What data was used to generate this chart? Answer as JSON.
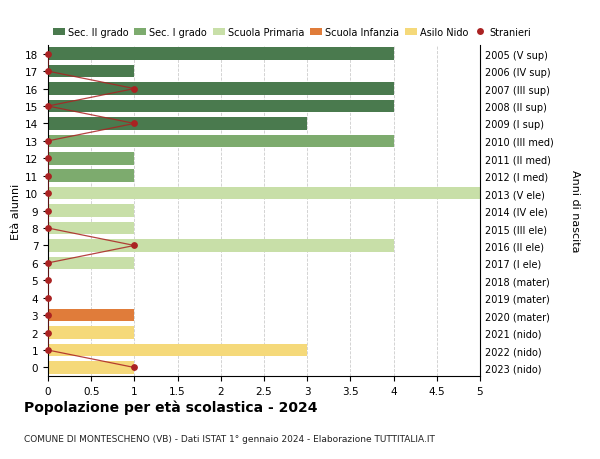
{
  "ages": [
    18,
    17,
    16,
    15,
    14,
    13,
    12,
    11,
    10,
    9,
    8,
    7,
    6,
    5,
    4,
    3,
    2,
    1,
    0
  ],
  "years": [
    "2005 (V sup)",
    "2006 (IV sup)",
    "2007 (III sup)",
    "2008 (II sup)",
    "2009 (I sup)",
    "2010 (III med)",
    "2011 (II med)",
    "2012 (I med)",
    "2013 (V ele)",
    "2014 (IV ele)",
    "2015 (III ele)",
    "2016 (II ele)",
    "2017 (I ele)",
    "2018 (mater)",
    "2019 (mater)",
    "2020 (mater)",
    "2021 (nido)",
    "2022 (nido)",
    "2023 (nido)"
  ],
  "bar_values": [
    4,
    1,
    4,
    4,
    3,
    4,
    1,
    1,
    5,
    1,
    1,
    4,
    1,
    0,
    0,
    1,
    1,
    3,
    1
  ],
  "bar_colors": [
    "#4a7a4e",
    "#4a7a4e",
    "#4a7a4e",
    "#4a7a4e",
    "#4a7a4e",
    "#7dab6e",
    "#7dab6e",
    "#7dab6e",
    "#c8dfa8",
    "#c8dfa8",
    "#c8dfa8",
    "#c8dfa8",
    "#c8dfa8",
    "#e07c3a",
    "#e07c3a",
    "#e07c3a",
    "#f5d97a",
    "#f5d97a",
    "#f5d97a"
  ],
  "stranieri_values": [
    0,
    0,
    1,
    0,
    1,
    0,
    0,
    0,
    0,
    0,
    0,
    1,
    0,
    0,
    0,
    0,
    0,
    0,
    1
  ],
  "title": "Popolazione per età scolastica - 2024",
  "subtitle": "COMUNE DI MONTESCHENO (VB) - Dati ISTAT 1° gennaio 2024 - Elaborazione TUTTITALIA.IT",
  "ylabel_left": "Età alunni",
  "ylabel_right": "Anni di nascita",
  "xlim": [
    0,
    5.0
  ],
  "xticks": [
    0,
    0.5,
    1.0,
    1.5,
    2.0,
    2.5,
    3.0,
    3.5,
    4.0,
    4.5,
    5.0
  ],
  "legend_labels": [
    "Sec. II grado",
    "Sec. I grado",
    "Scuola Primaria",
    "Scuola Infanzia",
    "Asilo Nido",
    "Stranieri"
  ],
  "legend_colors": [
    "#4a7a4e",
    "#7dab6e",
    "#c8dfa8",
    "#e07c3a",
    "#f5d97a",
    "#aa2222"
  ],
  "stranieri_line_color": "#aa2222",
  "bg_color": "#ffffff",
  "grid_color": "#cccccc"
}
